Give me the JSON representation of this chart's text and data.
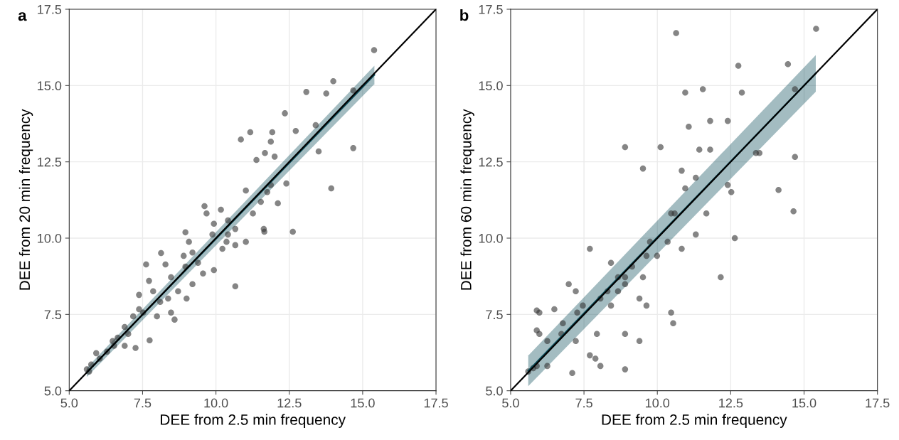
{
  "chart_data": [
    {
      "type": "scatter",
      "title": "a",
      "xlabel": "DEE from 2.5 min frequency",
      "ylabel": "DEE from 20 min frequency",
      "xlim": [
        5,
        17.5
      ],
      "ylim": [
        5,
        17.5
      ],
      "xticks": [
        {
          "value": 5,
          "label": "5.0"
        },
        {
          "value": 7.5,
          "label": "7.5"
        },
        {
          "value": 10,
          "label": "10.0"
        },
        {
          "value": 12.5,
          "label": "12.5"
        },
        {
          "value": 15,
          "label": "15.0"
        },
        {
          "value": 17.5,
          "label": "17.5"
        }
      ],
      "yticks": [
        {
          "value": 5,
          "label": "5.0"
        },
        {
          "value": 7.5,
          "label": "7.5"
        },
        {
          "value": 10,
          "label": "10.0"
        },
        {
          "value": 12.5,
          "label": "12.5"
        },
        {
          "value": 15,
          "label": "15.0"
        },
        {
          "value": 17.5,
          "label": "17.5"
        }
      ],
      "grid": true,
      "series": [
        {
          "marker": "circle",
          "color": "#333333",
          "x": [
            15.39,
            14.0,
            13.76,
            13.08,
            14.68,
            14.68,
            13.93,
            13.5,
            13.4,
            12.72,
            12.35,
            12.62,
            11.17,
            10.85,
            11.92,
            11.87,
            11.67,
            11.38,
            12.0,
            12.4,
            11.87,
            11.53,
            12.11,
            11.02,
            10.66,
            11.63,
            11.65,
            10.66,
            10.17,
            9.68,
            9.93,
            9.61,
            8.96,
            9.08,
            8.9,
            9.39,
            9.93,
            10.22,
            10.36,
            8.28,
            8.13,
            8.47,
            8.37,
            7.72,
            7.62,
            7.86,
            7.38,
            7.18,
            6.89,
            7.74,
            7.52,
            7.26,
            7.01,
            6.65,
            6.29,
            5.92,
            5.75,
            5.6,
            5.68,
            6.04,
            6.53,
            6.89,
            6.48,
            8.47,
            9.0,
            9.2,
            9.56,
            8.71,
            8.59,
            7.99,
            8.1,
            7.38,
            10.66,
            11.02,
            9.88,
            10.41,
            8.96,
            9.2,
            11.26,
            11.75,
            10.41
          ],
          "values": [
            16.16,
            15.14,
            14.74,
            14.79,
            14.84,
            12.95,
            11.63,
            12.84,
            13.7,
            13.51,
            14.09,
            10.21,
            13.47,
            13.23,
            13.47,
            13.16,
            12.79,
            12.56,
            12.67,
            11.79,
            11.74,
            11.19,
            11.14,
            11.56,
            10.3,
            10.3,
            10.21,
            8.42,
            10.93,
            10.81,
            10.47,
            11.05,
            10.19,
            9.88,
            9.42,
            9.19,
            8.95,
            9.65,
            9.88,
            9.14,
            9.51,
            8.72,
            8.02,
            8.6,
            9.14,
            8.26,
            7.67,
            7.44,
            7.09,
            6.65,
            7.56,
            6.4,
            6.86,
            6.74,
            6.28,
            6.23,
            5.86,
            5.7,
            5.63,
            6.05,
            6.47,
            6.47,
            6.63,
            7.56,
            8.02,
            8.49,
            8.84,
            8.26,
            7.33,
            7.44,
            7.91,
            8.14,
            9.77,
            9.88,
            10.12,
            10.58,
            9.07,
            9.53,
            10.81,
            11.51,
            10.12
          ]
        },
        {
          "type": "line",
          "color": "#0e4f5c",
          "x": [
            5.6,
            15.4
          ],
          "values": [
            5.6,
            15.35
          ],
          "lower": [
            5.45,
            15.05
          ],
          "upper": [
            5.75,
            15.65
          ]
        },
        {
          "type": "line",
          "color": "#000000",
          "x": [
            5,
            17.5
          ],
          "values": [
            5,
            17.5
          ]
        }
      ]
    },
    {
      "type": "scatter",
      "title": "b",
      "xlabel": "DEE from 2.5 min frequency",
      "ylabel": "DEE from 60 min frequency",
      "xlim": [
        5,
        17.5
      ],
      "ylim": [
        5,
        17.5
      ],
      "xticks": [
        {
          "value": 5,
          "label": "5.0"
        },
        {
          "value": 7.5,
          "label": "7.5"
        },
        {
          "value": 10,
          "label": "10.0"
        },
        {
          "value": 12.5,
          "label": "12.5"
        },
        {
          "value": 15,
          "label": "15.0"
        },
        {
          "value": 17.5,
          "label": "17.5"
        }
      ],
      "yticks": [
        {
          "value": 5,
          "label": "5.0"
        },
        {
          "value": 7.5,
          "label": "7.5"
        },
        {
          "value": 10,
          "label": "10.0"
        },
        {
          "value": 12.5,
          "label": "12.5"
        },
        {
          "value": 15,
          "label": "15.0"
        },
        {
          "value": 17.5,
          "label": "17.5"
        }
      ],
      "grid": true,
      "series": [
        {
          "marker": "circle",
          "color": "#333333",
          "x": [
            15.41,
            10.64,
            12.76,
            14.45,
            14.69,
            14.69,
            14.64,
            14.13,
            12.64,
            12.16,
            13.48,
            13.36,
            12.88,
            12.4,
            11.8,
            11.55,
            10.95,
            11.07,
            11.8,
            10.83,
            10.95,
            9.51,
            8.9,
            10.11,
            11.31,
            12.52,
            12.4,
            10.59,
            10.35,
            9.99,
            9.51,
            8.9,
            8.42,
            8.3,
            8.9,
            9.39,
            9.63,
            10.47,
            10.54,
            10.83,
            11.31,
            9.75,
            7.7,
            8.42,
            6.98,
            6.49,
            5.98,
            5.89,
            6.73,
            7.22,
            7.94,
            7.7,
            7.89,
            8.9,
            8.06,
            7.1,
            6.25,
            5.89,
            5.98,
            6.25,
            6.78,
            7.27,
            7.46,
            8.06,
            8.66,
            9.14,
            9.63,
            8.9,
            9.39,
            8.66,
            5.6,
            5.77,
            5.89,
            7.22,
            10.47,
            11.67,
            11.43
          ],
          "values": [
            16.86,
            16.72,
            15.65,
            15.7,
            14.88,
            12.66,
            10.88,
            11.58,
            10.0,
            8.72,
            12.79,
            12.79,
            14.77,
            13.84,
            13.84,
            14.88,
            14.77,
            13.65,
            12.9,
            12.21,
            11.63,
            12.28,
            12.98,
            12.98,
            11.98,
            11.51,
            11.74,
            10.81,
            9.88,
            9.42,
            8.72,
            8.49,
            7.79,
            8.26,
            8.72,
            8.02,
            7.79,
            7.56,
            7.21,
            9.65,
            10.12,
            9.88,
            9.65,
            9.19,
            8.49,
            7.67,
            7.56,
            7.63,
            6.86,
            6.63,
            6.86,
            6.16,
            6.05,
            5.7,
            5.81,
            5.58,
            5.81,
            5.81,
            6.86,
            6.63,
            7.21,
            7.56,
            7.79,
            8.02,
            8.26,
            9.07,
            9.42,
            6.86,
            6.63,
            8.72,
            5.63,
            5.74,
            6.98,
            8.26,
            10.81,
            10.81,
            12.9
          ]
        },
        {
          "type": "line",
          "color": "#0e4f5c",
          "x": [
            5.6,
            15.4
          ],
          "values": [
            5.65,
            15.4
          ],
          "lower": [
            5.15,
            14.8
          ],
          "upper": [
            6.15,
            16.0
          ]
        },
        {
          "type": "line",
          "color": "#000000",
          "x": [
            5,
            17.5
          ],
          "values": [
            5,
            17.5
          ]
        }
      ]
    }
  ]
}
